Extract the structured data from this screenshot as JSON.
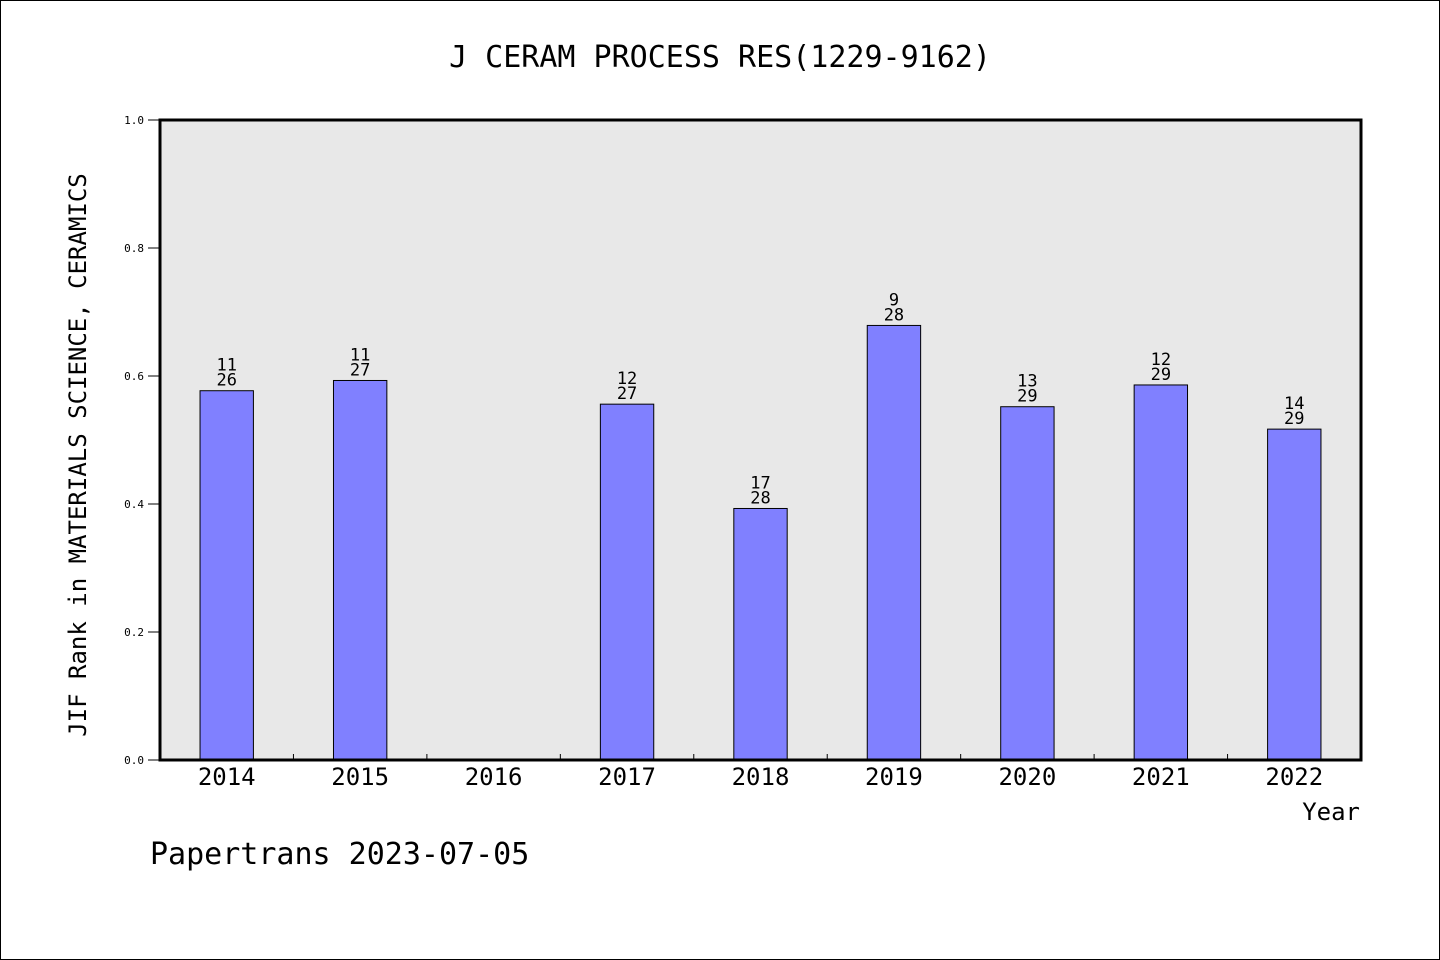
{
  "chart_data": {
    "type": "bar",
    "title": "J CERAM PROCESS RES(1229-9162)",
    "xlabel": "Year",
    "ylabel": "JIF Rank in MATERIALS SCIENCE, CERAMICS",
    "ylim": [
      0,
      1
    ],
    "yticks": [
      "0.0",
      "0.2",
      "0.4",
      "0.6",
      "0.8",
      "1.0"
    ],
    "categories": [
      "2014",
      "2015",
      "2016",
      "2017",
      "2018",
      "2019",
      "2020",
      "2021",
      "2022"
    ],
    "values": [
      0.577,
      0.593,
      null,
      0.556,
      0.393,
      0.679,
      0.552,
      0.586,
      0.517
    ],
    "rank_labels": [
      {
        "rank": "11",
        "total": "26"
      },
      {
        "rank": "11",
        "total": "27"
      },
      null,
      {
        "rank": "12",
        "total": "27"
      },
      {
        "rank": "17",
        "total": "28"
      },
      {
        "rank": "9",
        "total": "28"
      },
      {
        "rank": "13",
        "total": "29"
      },
      {
        "rank": "12",
        "total": "29"
      },
      {
        "rank": "14",
        "total": "29"
      }
    ],
    "bar_color": "#8080ff",
    "plot_background": "#e8e8e8",
    "grid": false
  },
  "footer": "Papertrans 2023-07-05"
}
